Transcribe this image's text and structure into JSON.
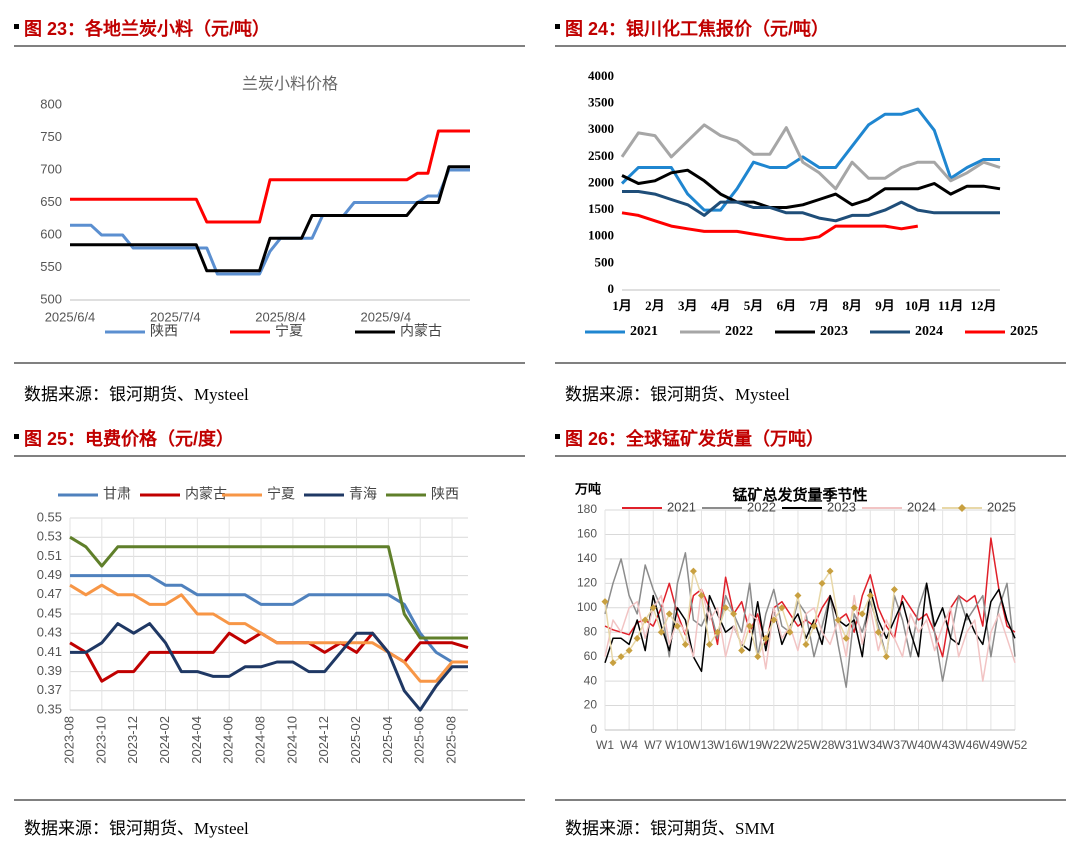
{
  "panels": [
    {
      "caption": "图 23：各地兰炭小料（元/吨）",
      "source": "数据来源：银河期货、Mysteel"
    },
    {
      "caption": "图 24：银川化工焦报价（元/吨）",
      "source": "数据来源：银河期货、Mysteel"
    },
    {
      "caption": "图 25：电费价格（元/度）",
      "source": "数据来源：银河期货、Mysteel"
    },
    {
      "caption": "图 26：全球锰矿发货量（万吨）",
      "source": "数据来源：银河期货、SMM"
    }
  ],
  "chart_data": [
    {
      "type": "line",
      "title": "兰炭小料价格",
      "legend": "bottom",
      "grid": false,
      "categories": [
        "2025/6/4",
        null,
        null,
        null,
        null,
        null,
        null,
        null,
        null,
        null,
        "2025/7/4",
        null,
        null,
        null,
        null,
        null,
        null,
        null,
        null,
        null,
        "2025/8/4",
        null,
        null,
        null,
        null,
        null,
        null,
        null,
        null,
        null,
        "2025/9/4",
        null,
        null,
        null,
        null,
        null,
        null,
        null,
        null
      ],
      "ylim": [
        500,
        800
      ],
      "yticks": [
        500,
        550,
        600,
        650,
        700,
        750,
        800
      ],
      "series": [
        {
          "name": "陕西",
          "color": "#5b8fd0",
          "values": [
            615,
            615,
            615,
            600,
            600,
            600,
            580,
            580,
            580,
            580,
            580,
            580,
            580,
            580,
            540,
            540,
            540,
            540,
            540,
            575,
            595,
            595,
            595,
            595,
            630,
            630,
            630,
            650,
            650,
            650,
            650,
            650,
            650,
            650,
            660,
            660,
            700,
            700,
            700
          ]
        },
        {
          "name": "宁夏",
          "color": "#ff0000",
          "values": [
            655,
            655,
            655,
            655,
            655,
            655,
            655,
            655,
            655,
            655,
            655,
            655,
            655,
            620,
            620,
            620,
            620,
            620,
            620,
            685,
            685,
            685,
            685,
            685,
            685,
            685,
            685,
            685,
            685,
            685,
            685,
            685,
            685,
            695,
            695,
            760,
            760,
            760,
            760
          ]
        },
        {
          "name": "内蒙古",
          "color": "#000000",
          "values": [
            585,
            585,
            585,
            585,
            585,
            585,
            585,
            585,
            585,
            585,
            585,
            585,
            585,
            545,
            545,
            545,
            545,
            545,
            545,
            595,
            595,
            595,
            595,
            630,
            630,
            630,
            630,
            630,
            630,
            630,
            630,
            630,
            630,
            650,
            650,
            650,
            705,
            705,
            705
          ]
        }
      ]
    },
    {
      "type": "line",
      "legend": "bottom",
      "grid": false,
      "categories": [
        "1月",
        null,
        "2月",
        null,
        "3月",
        null,
        "4月",
        null,
        "5月",
        null,
        "6月",
        null,
        "7月",
        null,
        "8月",
        null,
        "9月",
        null,
        "10月",
        null,
        "11月",
        null,
        "12月",
        null
      ],
      "ylim": [
        0,
        4000
      ],
      "yticks": [
        0,
        500,
        1000,
        1500,
        2000,
        2500,
        3000,
        3500,
        4000
      ],
      "series": [
        {
          "name": "2021",
          "color": "#1f86d0",
          "values": [
            2000,
            2300,
            2300,
            2300,
            1800,
            1500,
            1500,
            1900,
            2400,
            2300,
            2300,
            2500,
            2300,
            2300,
            2700,
            3100,
            3300,
            3300,
            3400,
            3000,
            2100,
            2300,
            2450,
            2450
          ]
        },
        {
          "name": "2022",
          "color": "#a6a6a6",
          "values": [
            2500,
            2950,
            2900,
            2500,
            2800,
            3100,
            2900,
            2800,
            2550,
            2550,
            3050,
            2400,
            2200,
            1900,
            2400,
            2100,
            2100,
            2300,
            2400,
            2400,
            2050,
            2200,
            2400,
            2300
          ]
        },
        {
          "name": "2023",
          "color": "#000000",
          "values": [
            2150,
            2000,
            2050,
            2200,
            2250,
            2050,
            1800,
            1650,
            1650,
            1550,
            1550,
            1600,
            1700,
            1800,
            1600,
            1700,
            1900,
            1900,
            1900,
            2000,
            1800,
            1950,
            1950,
            1900
          ]
        },
        {
          "name": "2024",
          "color": "#1f4e79",
          "values": [
            1850,
            1850,
            1800,
            1700,
            1600,
            1400,
            1650,
            1650,
            1550,
            1550,
            1450,
            1450,
            1350,
            1300,
            1400,
            1400,
            1500,
            1650,
            1500,
            1450,
            1450,
            1450,
            1450,
            1450
          ]
        },
        {
          "name": "2025",
          "color": "#ff0000",
          "values": [
            1450,
            1400,
            1300,
            1200,
            1150,
            1100,
            1100,
            1100,
            1050,
            1000,
            950,
            950,
            1000,
            1200,
            1200,
            1200,
            1200,
            1150,
            1200,
            null,
            null,
            null,
            null,
            null
          ]
        }
      ]
    },
    {
      "type": "line",
      "legend": "top",
      "grid": true,
      "rotate_x_labels": true,
      "categories": [
        "2023-08",
        null,
        "2023-10",
        null,
        "2023-12",
        null,
        "2024-02",
        null,
        "2024-04",
        null,
        "2024-06",
        null,
        "2024-08",
        null,
        "2024-10",
        null,
        "2024-12",
        null,
        "2025-02",
        null,
        "2025-04",
        null,
        "2025-06",
        null,
        "2025-08",
        null
      ],
      "ylim": [
        0.35,
        0.55
      ],
      "yticks": [
        0.35,
        0.37,
        0.39,
        0.41,
        0.43,
        0.45,
        0.47,
        0.49,
        0.51,
        0.53,
        0.55
      ],
      "series": [
        {
          "name": "甘肃",
          "color": "#4f81bd",
          "values": [
            0.49,
            0.49,
            0.49,
            0.49,
            0.49,
            0.49,
            0.48,
            0.48,
            0.47,
            0.47,
            0.47,
            0.47,
            0.46,
            0.46,
            0.46,
            0.47,
            0.47,
            0.47,
            0.47,
            0.47,
            0.47,
            0.46,
            0.43,
            0.41,
            0.4,
            0.4
          ]
        },
        {
          "name": "内蒙古",
          "color": "#c00000",
          "values": [
            0.42,
            0.41,
            0.38,
            0.39,
            0.39,
            0.41,
            0.41,
            0.41,
            0.41,
            0.41,
            0.43,
            0.42,
            0.43,
            0.42,
            0.42,
            0.42,
            0.41,
            0.42,
            0.41,
            0.43,
            0.41,
            0.4,
            0.42,
            0.42,
            0.42,
            0.415
          ]
        },
        {
          "name": "宁夏",
          "color": "#f79646",
          "values": [
            0.48,
            0.47,
            0.48,
            0.47,
            0.47,
            0.46,
            0.46,
            0.47,
            0.45,
            0.45,
            0.44,
            0.44,
            0.43,
            0.42,
            0.42,
            0.42,
            0.42,
            0.42,
            0.42,
            0.42,
            0.41,
            0.4,
            0.38,
            0.38,
            0.4,
            0.4
          ]
        },
        {
          "name": "青海",
          "color": "#1f3864",
          "values": [
            0.41,
            0.41,
            0.42,
            0.44,
            0.43,
            0.44,
            0.42,
            0.39,
            0.39,
            0.385,
            0.385,
            0.395,
            0.395,
            0.4,
            0.4,
            0.39,
            0.39,
            0.41,
            0.43,
            0.43,
            0.41,
            0.37,
            0.35,
            0.375,
            0.395,
            0.395
          ]
        },
        {
          "name": "陕西",
          "color": "#5f7f2a",
          "values": [
            0.53,
            0.52,
            0.5,
            0.52,
            0.52,
            0.52,
            0.52,
            0.52,
            0.52,
            0.52,
            0.52,
            0.52,
            0.52,
            0.52,
            0.52,
            0.52,
            0.52,
            0.52,
            0.52,
            0.52,
            0.52,
            0.45,
            0.425,
            0.425,
            0.425,
            0.425
          ]
        }
      ]
    },
    {
      "type": "line",
      "title": "锰矿总发货量季节性",
      "y_label": "万吨",
      "legend": "top",
      "grid": true,
      "categories": [
        "W1",
        null,
        null,
        "W4",
        null,
        null,
        "W7",
        null,
        null,
        "W10",
        null,
        null,
        "W13",
        null,
        null,
        "W16",
        null,
        null,
        "W19",
        null,
        null,
        "W22",
        null,
        null,
        "W25",
        null,
        null,
        "W28",
        null,
        null,
        "W31",
        null,
        null,
        "W34",
        null,
        null,
        "W37",
        null,
        null,
        "W40",
        null,
        null,
        "W43",
        null,
        null,
        "W46",
        null,
        null,
        "W49",
        null,
        null,
        "W52"
      ],
      "ylim": [
        0,
        180
      ],
      "yticks": [
        0,
        20,
        40,
        60,
        80,
        100,
        120,
        140,
        160,
        180
      ],
      "series": [
        {
          "name": "2021",
          "color": "#e0202a",
          "values": [
            85,
            82,
            80,
            78,
            88,
            90,
            85,
            100,
            120,
            95,
            78,
            110,
            115,
            100,
            70,
            125,
            95,
            105,
            80,
            95,
            70,
            100,
            105,
            95,
            85,
            90,
            85,
            100,
            110,
            90,
            95,
            80,
            110,
            127,
            100,
            85,
            75,
            110,
            100,
            90,
            95,
            80,
            60,
            100,
            110,
            105,
            110,
            85,
            157,
            115,
            85,
            80
          ]
        },
        {
          "name": "2022",
          "color": "#8c8c8c",
          "values": [
            95,
            120,
            140,
            110,
            95,
            135,
            115,
            100,
            60,
            120,
            145,
            90,
            85,
            100,
            75,
            110,
            95,
            80,
            120,
            60,
            95,
            115,
            85,
            80,
            105,
            95,
            60,
            85,
            110,
            70,
            35,
            95,
            80,
            105,
            85,
            60,
            110,
            90,
            60,
            100,
            120,
            80,
            40,
            75,
            110,
            90,
            100,
            110,
            60,
            100,
            120,
            60
          ]
        },
        {
          "name": "2023",
          "color": "#000000",
          "values": [
            55,
            75,
            75,
            70,
            90,
            65,
            110,
            85,
            65,
            100,
            90,
            60,
            48,
            110,
            95,
            80,
            85,
            70,
            65,
            105,
            65,
            100,
            70,
            85,
            95,
            75,
            90,
            70,
            110,
            90,
            85,
            90,
            60,
            115,
            90,
            75,
            90,
            105,
            80,
            60,
            120,
            85,
            100,
            75,
            70,
            95,
            80,
            70,
            105,
            115,
            90,
            75
          ]
        },
        {
          "name": "2024",
          "color": "#f2c4c4",
          "values": [
            60,
            90,
            80,
            100,
            105,
            75,
            100,
            110,
            70,
            90,
            80,
            60,
            115,
            90,
            100,
            60,
            85,
            70,
            95,
            90,
            50,
            100,
            75,
            85,
            65,
            95,
            100,
            80,
            70,
            90,
            60,
            110,
            70,
            100,
            65,
            90,
            75,
            60,
            95,
            80,
            90,
            65,
            85,
            100,
            60,
            80,
            90,
            40,
            80,
            95,
            75,
            55
          ]
        },
        {
          "name": "2025",
          "color": "#e8d8a8",
          "marker": "#c8a040",
          "values": [
            105,
            55,
            60,
            65,
            75,
            90,
            100,
            80,
            95,
            85,
            70,
            130,
            110,
            70,
            80,
            100,
            95,
            65,
            85,
            60,
            75,
            90,
            100,
            80,
            110,
            70,
            85,
            120,
            130,
            90,
            75,
            100,
            95,
            110,
            80,
            60,
            115,
            null,
            null,
            null,
            null,
            null,
            null,
            null,
            null,
            null,
            null,
            null,
            null,
            null,
            null,
            null
          ]
        }
      ]
    }
  ]
}
